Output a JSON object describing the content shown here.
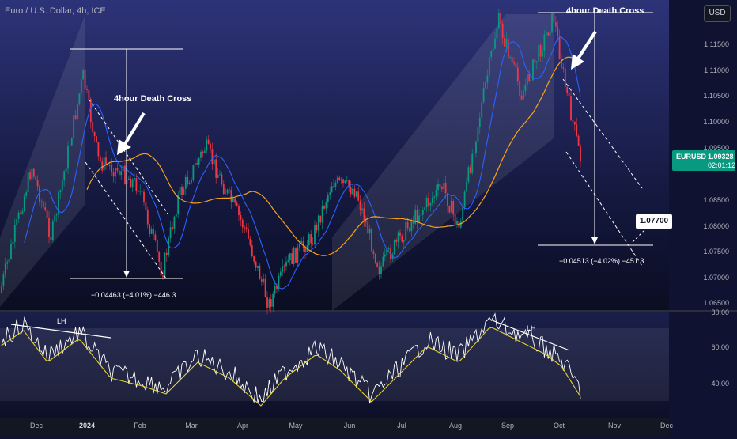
{
  "header": {
    "symbol_title": "Euro / U.S. Dollar, 4h, ICE",
    "currency": "USD"
  },
  "last_price": {
    "symbol": "EURUSD",
    "price": "1.09328",
    "countdown": "02:01:12"
  },
  "annotations": {
    "death_cross_left": "4hour Death Cross",
    "death_cross_right": "4hour Death Cross",
    "measure_left": "−0.04463 (−4.01%) −446.3",
    "measure_right": "−0.04513 (−4.02%) −451.3",
    "target": "1.07700",
    "lh_left": "LH",
    "lh_right": "LH"
  },
  "price_axis_labels": [
    "1.11500",
    "1.11000",
    "1.10500",
    "1.10000",
    "1.09500",
    "1.08500",
    "1.08000",
    "1.07500",
    "1.07000",
    "1.06500"
  ],
  "rsi_axis_labels": [
    "80.00",
    "60.00",
    "40.00"
  ],
  "time_axis_labels": [
    "Dec",
    "2024",
    "Feb",
    "Mar",
    "Apr",
    "May",
    "Jun",
    "Jul",
    "Aug",
    "Sep",
    "Oct",
    "Nov",
    "Dec"
  ],
  "colors": {
    "background": "#0f1230",
    "up_candle": "#089981",
    "down_candle": "#f23645",
    "ma_fast": "#2962ff",
    "ma_slow": "#f7a21b",
    "rsi_line": "#ffffff",
    "rsi_ma": "#e6d234"
  }
}
